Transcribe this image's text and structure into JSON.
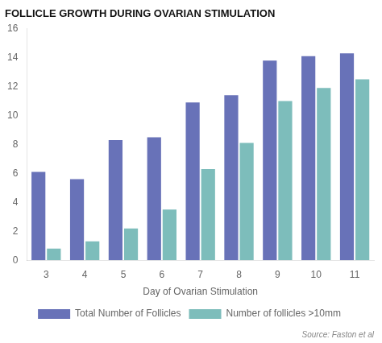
{
  "chart_data": {
    "type": "bar",
    "title": "FOLLICLE GROWTH DURING OVARIAN STIMULATION",
    "xlabel": "Day of Ovarian Stimulation",
    "categories": [
      "3",
      "4",
      "5",
      "6",
      "7",
      "8",
      "9",
      "10",
      "11"
    ],
    "series": [
      {
        "name": "Total Number of Follicles",
        "color": "#6872B8",
        "values": [
          6.1,
          5.6,
          8.3,
          8.5,
          10.9,
          11.4,
          13.8,
          14.1,
          14.3
        ]
      },
      {
        "name": "Number of follicles >10mm",
        "color": "#7DBDBB",
        "values": [
          0.8,
          1.3,
          2.2,
          3.5,
          6.3,
          8.1,
          11.0,
          11.9,
          12.5
        ]
      }
    ],
    "ylim": [
      0,
      16
    ],
    "yticks": [
      0,
      2,
      4,
      6,
      8,
      10,
      12,
      14,
      16
    ],
    "grid": false,
    "legend": "bottom",
    "annotations": [
      "Source: Faston et al"
    ]
  }
}
